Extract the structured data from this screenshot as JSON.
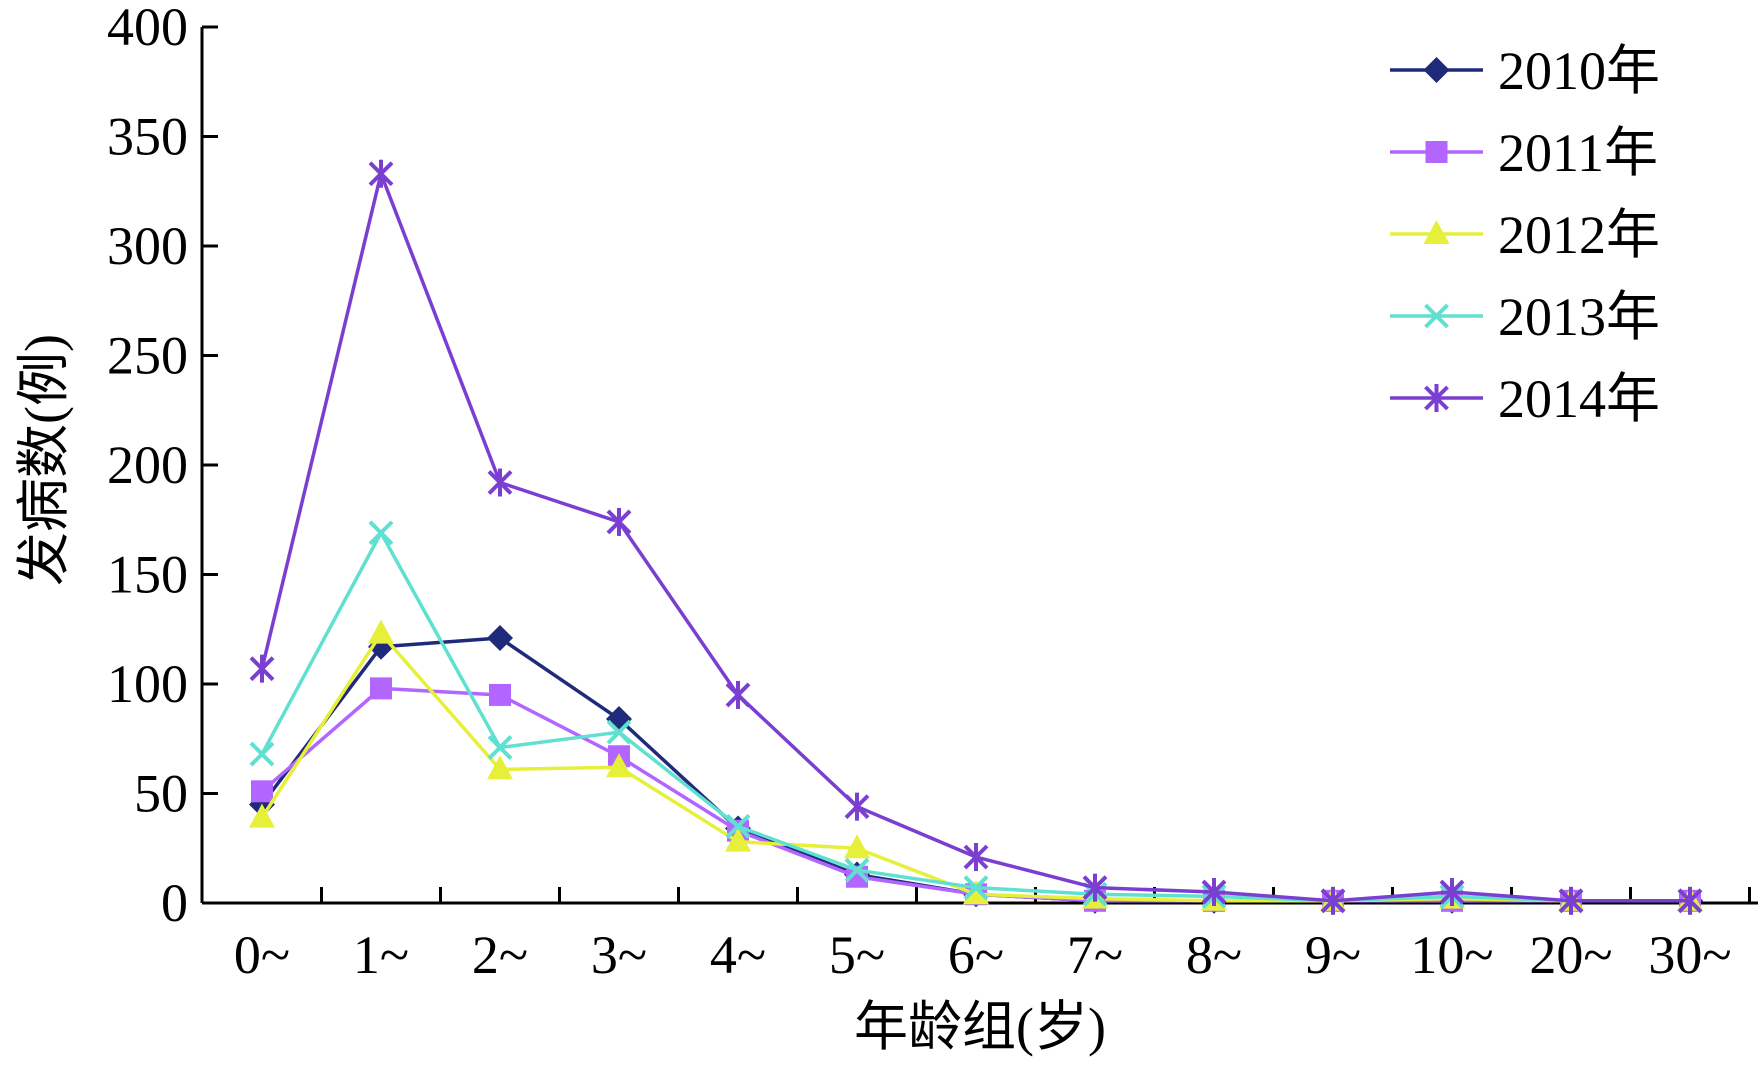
{
  "chart_data": {
    "type": "line",
    "title": "",
    "xlabel": "年龄组(岁)",
    "ylabel": "发病数(例)",
    "categories": [
      "0~",
      "1~",
      "2~",
      "3~",
      "4~",
      "5~",
      "6~",
      "7~",
      "8~",
      "9~",
      "10~",
      "20~",
      "30~"
    ],
    "ylim": [
      0,
      400
    ],
    "yticks": [
      0,
      50,
      100,
      150,
      200,
      250,
      300,
      350,
      400
    ],
    "grid": false,
    "legend_position": "top-right",
    "series": [
      {
        "name": "2010年",
        "color": "#1f2a7a",
        "marker": "diamond",
        "values": [
          45,
          117,
          121,
          84,
          34,
          13,
          4,
          1,
          1,
          1,
          1,
          1,
          1
        ]
      },
      {
        "name": "2011年",
        "color": "#b266ff",
        "marker": "square",
        "values": [
          51,
          98,
          95,
          67,
          33,
          12,
          4,
          1,
          1,
          1,
          1,
          1,
          1
        ]
      },
      {
        "name": "2012年",
        "color": "#e6f03a",
        "marker": "triangle",
        "values": [
          39,
          123,
          61,
          62,
          28,
          25,
          4,
          2,
          1,
          1,
          2,
          1,
          1
        ]
      },
      {
        "name": "2013年",
        "color": "#5fe0d0",
        "marker": "x",
        "values": [
          68,
          169,
          71,
          78,
          35,
          15,
          7,
          4,
          3,
          1,
          3,
          1,
          1
        ]
      },
      {
        "name": "2014年",
        "color": "#7a3fd0",
        "marker": "asterisk",
        "values": [
          107,
          333,
          192,
          174,
          95,
          44,
          21,
          7,
          5,
          1,
          5,
          1,
          1
        ]
      }
    ]
  }
}
